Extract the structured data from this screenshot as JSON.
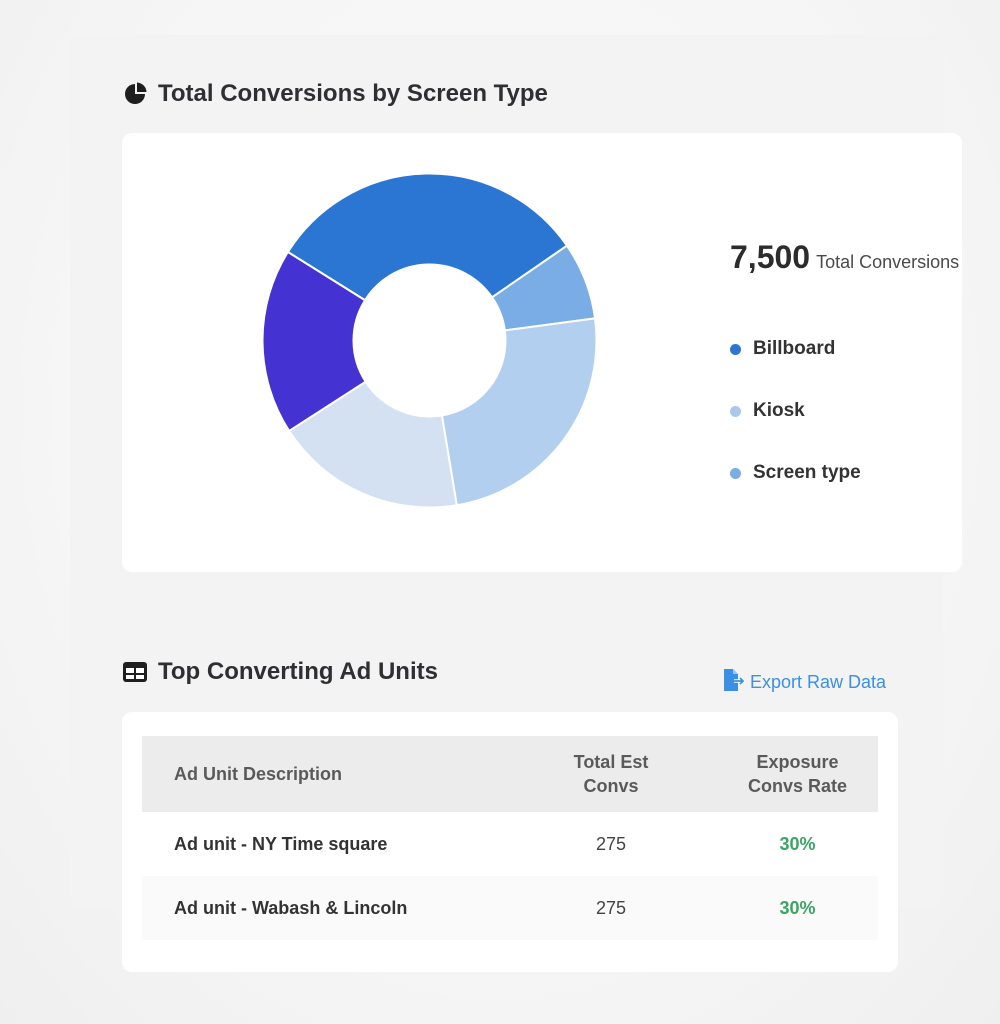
{
  "chart_section": {
    "title": "Total Conversions by Screen Type",
    "icon": "pie-chart-icon",
    "total_value": "7,500",
    "total_label": "Total Conversions"
  },
  "chart_data": {
    "type": "pie",
    "variant": "donut",
    "total": 7500,
    "legend": [
      {
        "label": "Billboard",
        "color": "#2a76d2"
      },
      {
        "label": "Kiosk",
        "color": "#a9c8ee"
      },
      {
        "label": "Screen type",
        "color": "#7aace6"
      }
    ],
    "slices": [
      {
        "percent": 31.5,
        "color": "#2a76d2"
      },
      {
        "percent": 7.5,
        "color": "#7aace6"
      },
      {
        "percent": 24.5,
        "color": "#b3cff0"
      },
      {
        "percent": 18.5,
        "color": "#d3e1f3"
      },
      {
        "percent": 18.0,
        "color": "#4433d2"
      }
    ]
  },
  "table_section": {
    "title": "Top Converting Ad Units",
    "icon": "table-icon",
    "export_label": "Export Raw Data",
    "columns": [
      "Ad Unit Description",
      "Total Est Convs",
      "Exposure Convs Rate"
    ],
    "rows": [
      {
        "description": "Ad unit - NY Time square",
        "convs": "275",
        "rate": "30%"
      },
      {
        "description": "Ad unit - Wabash & Lincoln",
        "convs": "275",
        "rate": "30%"
      }
    ]
  },
  "colors": {
    "accent": "#3b8fe5",
    "positive": "#3aa564"
  }
}
